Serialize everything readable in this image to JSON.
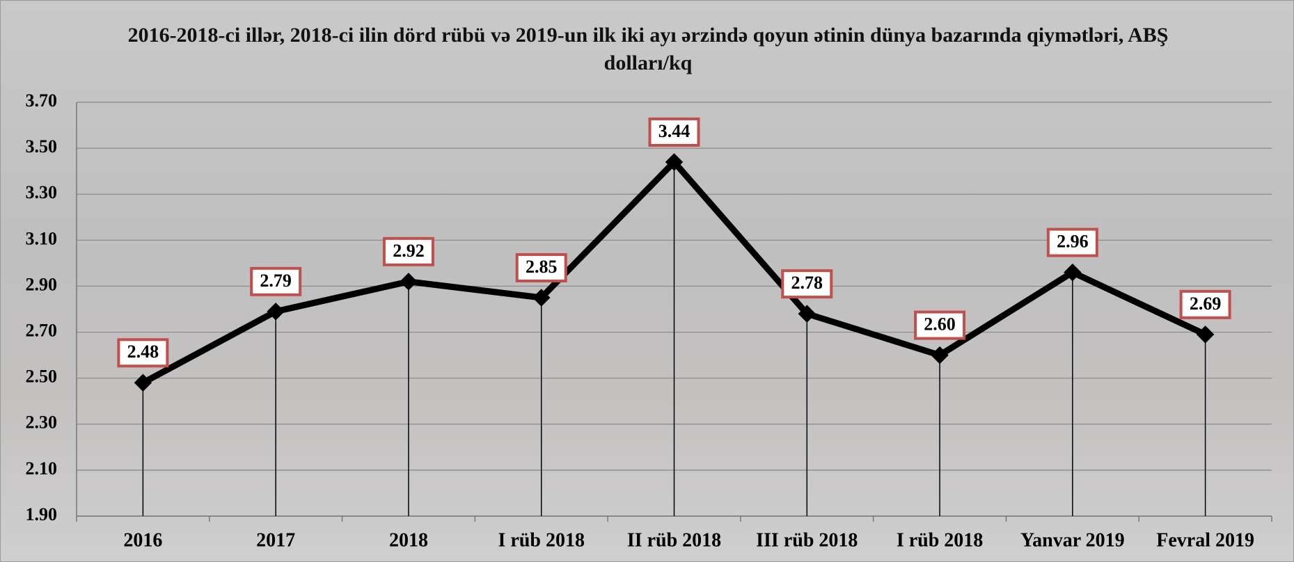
{
  "chart_data": {
    "type": "line",
    "title": "2016-2018-ci illər, 2018-ci ilin dörd rübü və 2019-un ilk iki ayı ərzində qoyun ətinin dünya bazarında qiymətləri, ABŞ dolları/kq",
    "categories": [
      "2016",
      "2017",
      "2018",
      "I rüb 2018",
      "II rüb 2018",
      "III rüb 2018",
      "I rüb 2018",
      "Yanvar 2019",
      "Fevral 2019"
    ],
    "series": [
      {
        "name": null,
        "color": "#000000",
        "values": [
          2.48,
          2.79,
          2.92,
          2.85,
          3.44,
          2.78,
          2.6,
          2.96,
          2.69
        ],
        "value_labels": [
          "2.48",
          "2.79",
          "2.92",
          "2.85",
          "3.44",
          "2.78",
          "2.60",
          "2.96",
          "2.69"
        ]
      }
    ],
    "ylim": [
      1.9,
      3.7
    ],
    "yticks": [
      {
        "value": 1.9,
        "label": "1.90"
      },
      {
        "value": 2.1,
        "label": "2.10"
      },
      {
        "value": 2.3,
        "label": "2.30"
      },
      {
        "value": 2.5,
        "label": "2.50"
      },
      {
        "value": 2.7,
        "label": "2.70"
      },
      {
        "value": 2.9,
        "label": "2.90"
      },
      {
        "value": 3.1,
        "label": "3.10"
      },
      {
        "value": 3.3,
        "label": "3.30"
      },
      {
        "value": 3.5,
        "label": "3.50"
      },
      {
        "value": 3.7,
        "label": "3.70"
      }
    ],
    "grid": true
  }
}
